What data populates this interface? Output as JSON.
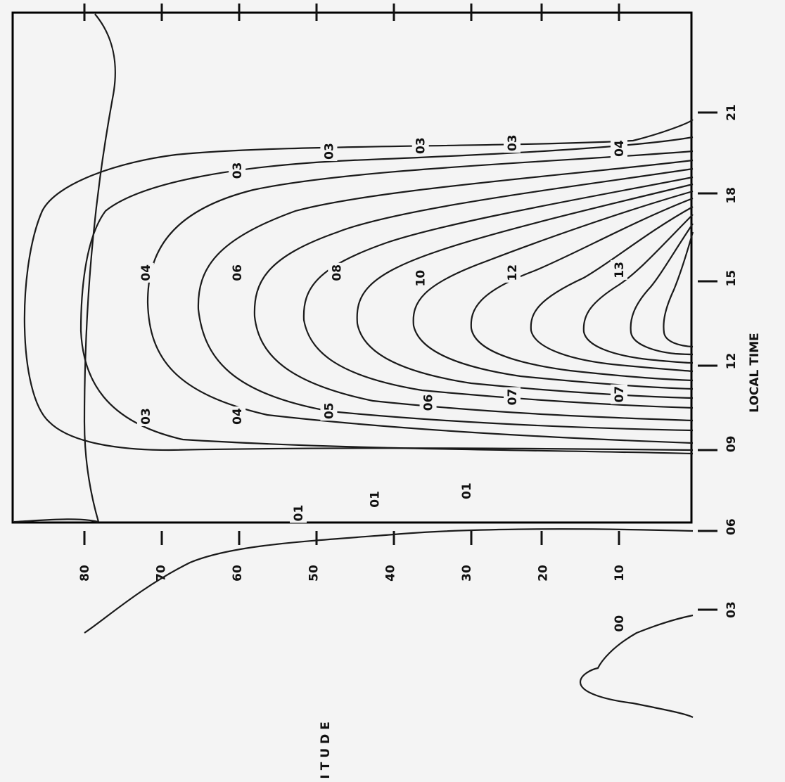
{
  "chart_data": {
    "type": "contour",
    "orientation": "rotated-90-clockwise",
    "xlabel": "LOCAL TIME",
    "ylabel": "LATITUDE",
    "x_ticks": [
      "03",
      "06",
      "09",
      "12",
      "15",
      "18",
      "21"
    ],
    "y_ticks": [
      "80",
      "70",
      "60",
      "50",
      "40",
      "30",
      "20",
      "10"
    ],
    "x_range": [
      0,
      24
    ],
    "y_range": [
      0,
      85
    ],
    "contour_labels": [
      {
        "text": "00",
        "time": 2.5,
        "lat": 10
      },
      {
        "text": "01",
        "time": 6.5,
        "lat": 52
      },
      {
        "text": "01",
        "time": 7.0,
        "lat": 42
      },
      {
        "text": "01",
        "time": 7.3,
        "lat": 30
      },
      {
        "text": "03",
        "time": 10.0,
        "lat": 72
      },
      {
        "text": "04",
        "time": 10.0,
        "lat": 60
      },
      {
        "text": "05",
        "time": 10.2,
        "lat": 48
      },
      {
        "text": "06",
        "time": 10.5,
        "lat": 35
      },
      {
        "text": "07",
        "time": 10.7,
        "lat": 24
      },
      {
        "text": "07",
        "time": 10.8,
        "lat": 10
      },
      {
        "text": "04",
        "time": 15.2,
        "lat": 72
      },
      {
        "text": "06",
        "time": 15.2,
        "lat": 60
      },
      {
        "text": "08",
        "time": 15.2,
        "lat": 47
      },
      {
        "text": "10",
        "time": 15.0,
        "lat": 36
      },
      {
        "text": "12",
        "time": 15.2,
        "lat": 24
      },
      {
        "text": "13",
        "time": 15.3,
        "lat": 10
      },
      {
        "text": "03",
        "time": 18.9,
        "lat": 60
      },
      {
        "text": "03",
        "time": 19.6,
        "lat": 48
      },
      {
        "text": "03",
        "time": 19.8,
        "lat": 36
      },
      {
        "text": "03",
        "time": 19.9,
        "lat": 24
      },
      {
        "text": "04",
        "time": 19.7,
        "lat": 10
      }
    ]
  }
}
